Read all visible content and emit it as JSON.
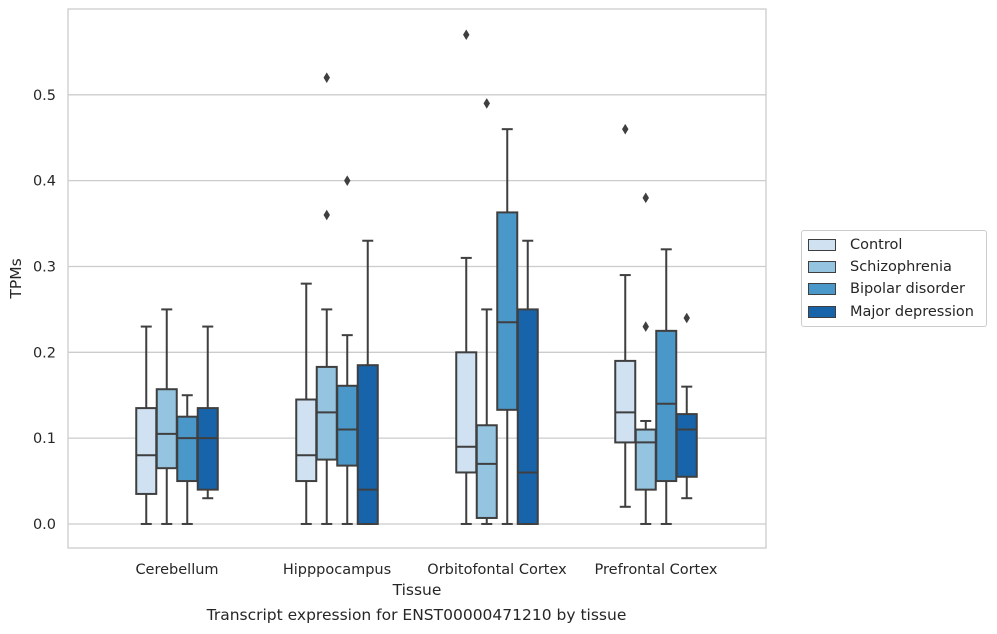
{
  "caption": "Transcript expression for ENST00000471210 by tissue",
  "colors": {
    "Control": "#d0e1f2",
    "Schizophrenia": "#94c4df",
    "Bipolar disorder": "#4a98c9",
    "Major depression": "#1764ab",
    "grid": "#cccccc",
    "line": "#3f3f3f"
  },
  "chart_data": {
    "type": "box",
    "xlabel": "Tissue",
    "ylabel": "TPMs",
    "ylim": [
      -0.028,
      0.6
    ],
    "yticks": [
      0.0,
      0.1,
      0.2,
      0.3,
      0.4,
      0.5
    ],
    "grid": "horizontal",
    "legend_position": "right, outside plot",
    "categories": [
      "Cerebellum",
      "Hipppocampus",
      "Orbitofontal Cortex",
      "Prefrontal Cortex"
    ],
    "series": [
      {
        "name": "Control",
        "boxes": [
          {
            "whislo": 0.0,
            "q1": 0.035,
            "med": 0.08,
            "q3": 0.135,
            "whishi": 0.23,
            "fliers": []
          },
          {
            "whislo": 0.0,
            "q1": 0.05,
            "med": 0.08,
            "q3": 0.145,
            "whishi": 0.28,
            "fliers": []
          },
          {
            "whislo": 0.0,
            "q1": 0.06,
            "med": 0.09,
            "q3": 0.2,
            "whishi": 0.31,
            "fliers": [
              0.57
            ]
          },
          {
            "whislo": 0.02,
            "q1": 0.095,
            "med": 0.13,
            "q3": 0.19,
            "whishi": 0.29,
            "fliers": [
              0.46
            ]
          }
        ]
      },
      {
        "name": "Schizophrenia",
        "boxes": [
          {
            "whislo": 0.0,
            "q1": 0.065,
            "med": 0.105,
            "q3": 0.157,
            "whishi": 0.25,
            "fliers": []
          },
          {
            "whislo": 0.0,
            "q1": 0.075,
            "med": 0.13,
            "q3": 0.183,
            "whishi": 0.25,
            "fliers": [
              0.36,
              0.52
            ]
          },
          {
            "whislo": 0.0,
            "q1": 0.007,
            "med": 0.07,
            "q3": 0.115,
            "whishi": 0.25,
            "fliers": [
              0.49
            ]
          },
          {
            "whislo": 0.0,
            "q1": 0.04,
            "med": 0.095,
            "q3": 0.11,
            "whishi": 0.12,
            "fliers": [
              0.23,
              0.38
            ]
          }
        ]
      },
      {
        "name": "Bipolar disorder",
        "boxes": [
          {
            "whislo": 0.0,
            "q1": 0.05,
            "med": 0.1,
            "q3": 0.125,
            "whishi": 0.15,
            "fliers": []
          },
          {
            "whislo": 0.0,
            "q1": 0.068,
            "med": 0.11,
            "q3": 0.161,
            "whishi": 0.22,
            "fliers": [
              0.4
            ]
          },
          {
            "whislo": 0.0,
            "q1": 0.133,
            "med": 0.235,
            "q3": 0.363,
            "whishi": 0.46,
            "fliers": []
          },
          {
            "whislo": 0.0,
            "q1": 0.05,
            "med": 0.14,
            "q3": 0.225,
            "whishi": 0.32,
            "fliers": []
          }
        ]
      },
      {
        "name": "Major depression",
        "boxes": [
          {
            "whislo": 0.03,
            "q1": 0.04,
            "med": 0.1,
            "q3": 0.135,
            "whishi": 0.23,
            "fliers": []
          },
          {
            "whislo": 0.0,
            "q1": 0.0,
            "med": 0.04,
            "q3": 0.185,
            "whishi": 0.33,
            "fliers": []
          },
          {
            "whislo": 0.0,
            "q1": 0.0,
            "med": 0.06,
            "q3": 0.25,
            "whishi": 0.33,
            "fliers": []
          },
          {
            "whislo": 0.03,
            "q1": 0.055,
            "med": 0.11,
            "q3": 0.128,
            "whishi": 0.16,
            "fliers": [
              0.24
            ]
          }
        ]
      }
    ]
  }
}
